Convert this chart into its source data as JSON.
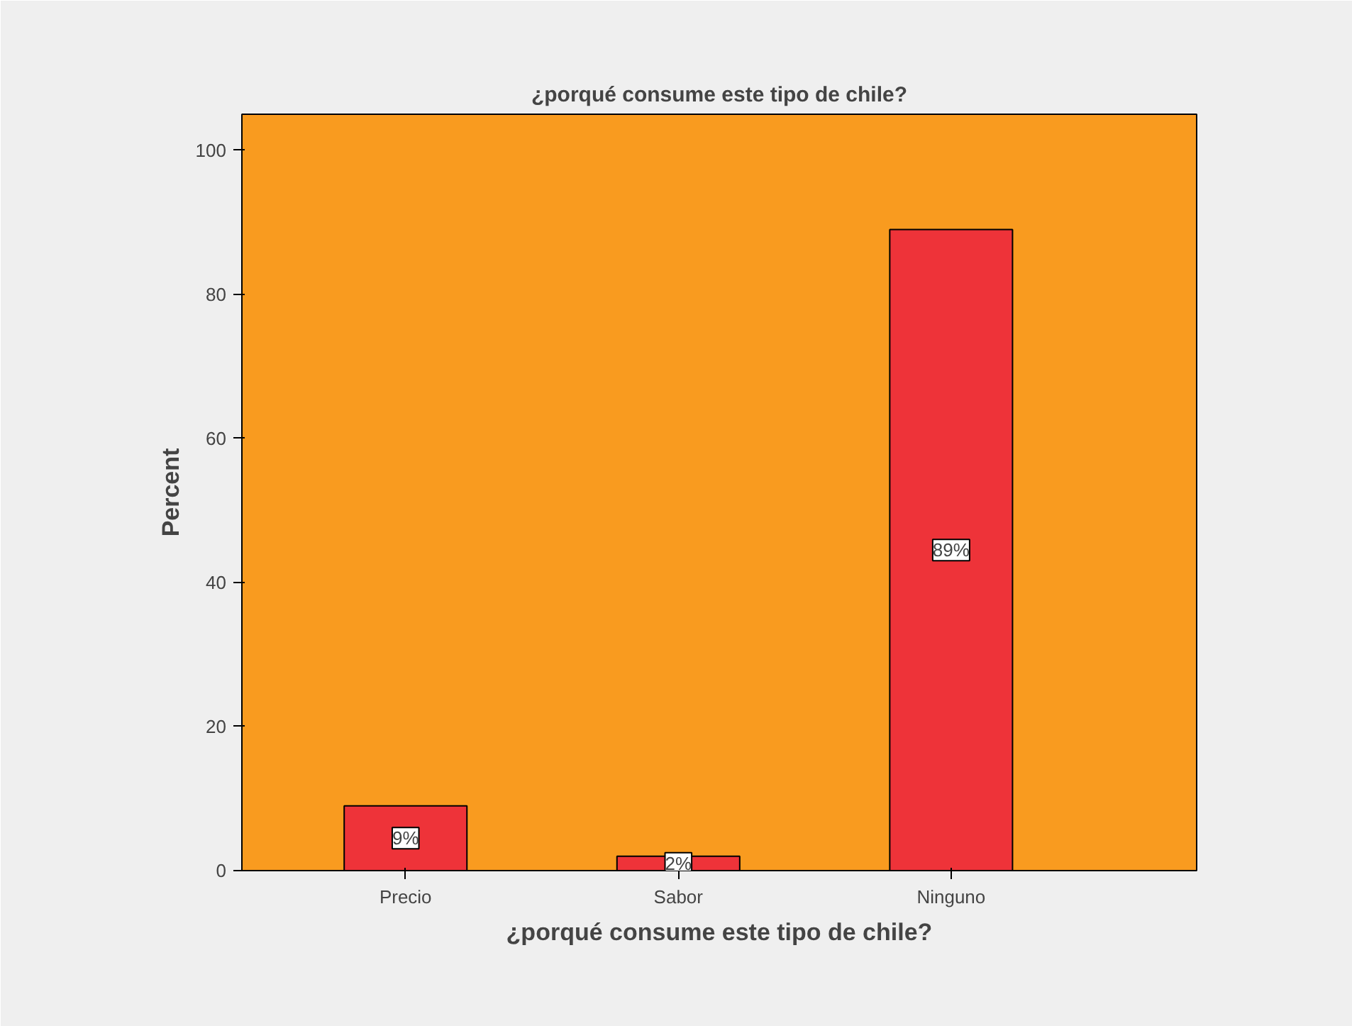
{
  "chart_data": {
    "type": "bar",
    "title": "¿porqué consume este tipo de chile?",
    "xlabel": "¿porqué consume este tipo de chile?",
    "ylabel": "Percent",
    "categories": [
      "Precio",
      "Sabor",
      "Ninguno"
    ],
    "values": [
      9,
      2,
      89
    ],
    "value_labels": [
      "9%",
      "2%",
      "89%"
    ],
    "color": "#ee3339",
    "ylim": [
      0,
      105
    ],
    "yticks": [
      0,
      20,
      40,
      60,
      80,
      100
    ],
    "grid": false
  }
}
